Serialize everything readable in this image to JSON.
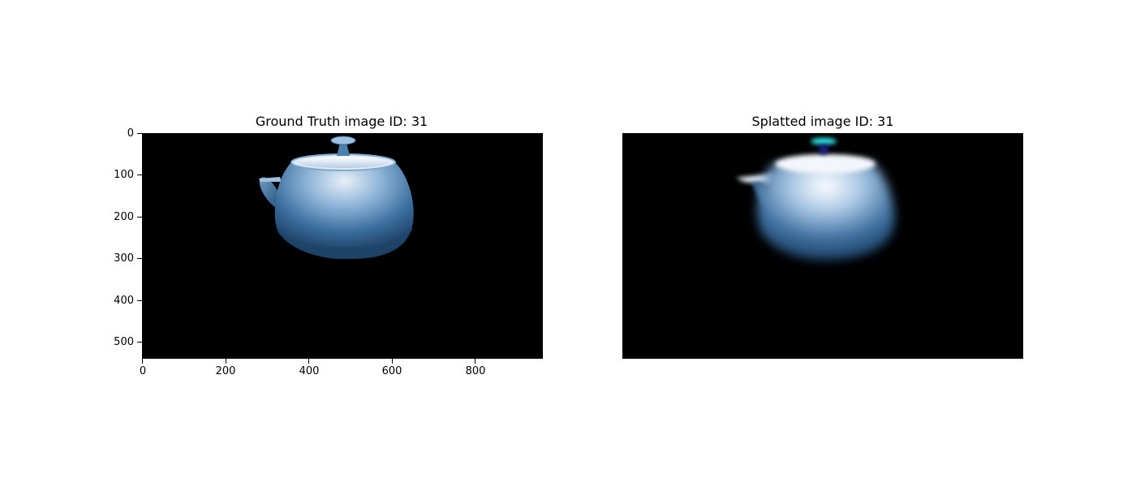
{
  "panels": [
    {
      "title": "Ground Truth image ID: 31",
      "axes_visible": true,
      "y_ticks": [
        "0",
        "100",
        "200",
        "300",
        "400",
        "500"
      ],
      "x_ticks": [
        "0",
        "200",
        "400",
        "600",
        "800"
      ],
      "image": "teapot-ground-truth",
      "colors": {
        "background": "#000000",
        "body": "#2b5c8a",
        "highlight": "#e6eef7"
      }
    },
    {
      "title": "Splatted image ID: 31",
      "axes_visible": false,
      "image": "teapot-splatted",
      "colors": {
        "background": "#000000",
        "body": "#2e5f8e",
        "highlight": "#f2f6fb",
        "lid-glow": "#2af0f0"
      }
    }
  ]
}
